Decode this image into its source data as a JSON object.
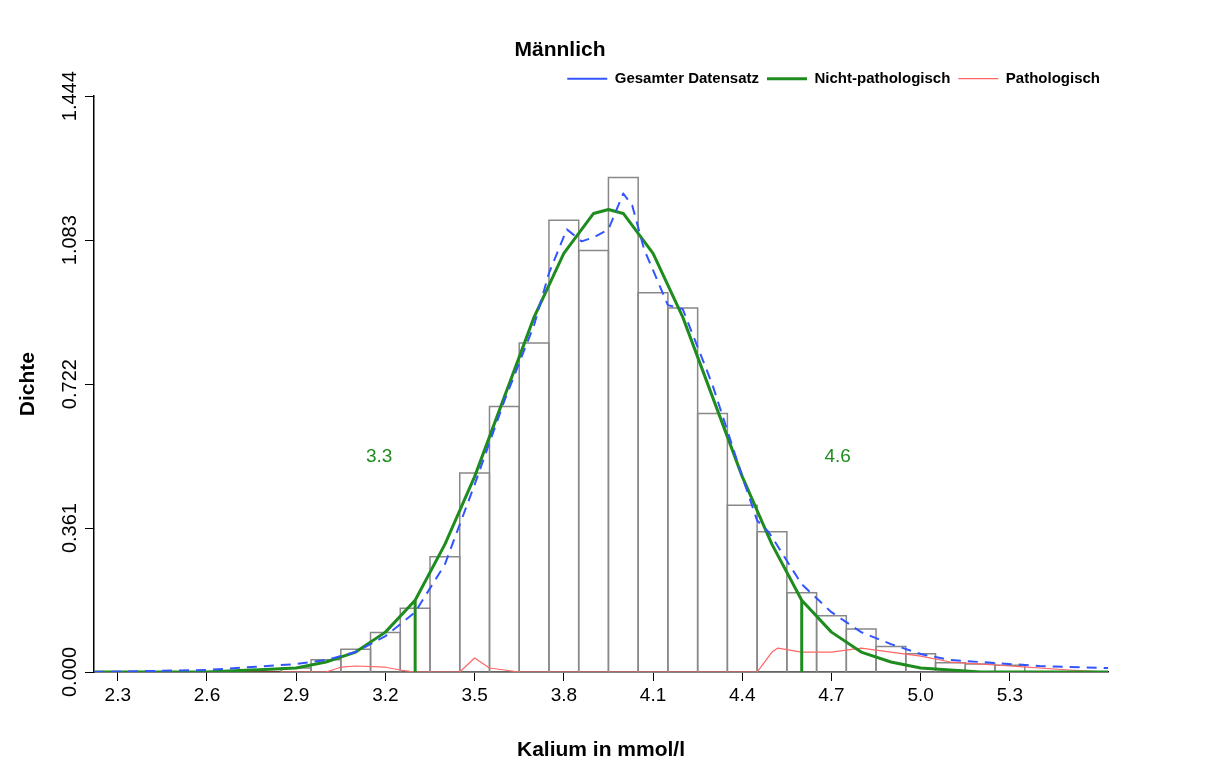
{
  "chart_data": {
    "type": "histogram",
    "title": "Männlich",
    "xlabel": "Kalium in mmol/l",
    "ylabel": "Dichte",
    "bins": [
      2.85,
      2.95,
      3.05,
      3.15,
      3.25,
      3.35,
      3.45,
      3.55,
      3.65,
      3.75,
      3.85,
      3.95,
      4.05,
      4.15,
      4.25,
      4.35,
      4.45,
      4.55,
      4.65,
      4.75,
      4.85,
      4.95,
      5.05,
      5.15,
      5.25,
      5.35
    ],
    "values": [
      0.01,
      0.031,
      0.057,
      0.099,
      0.16,
      0.289,
      0.499,
      0.666,
      0.825,
      1.133,
      1.057,
      1.24,
      0.951,
      0.913,
      0.648,
      0.418,
      0.352,
      0.199,
      0.141,
      0.108,
      0.064,
      0.046,
      0.023,
      0.02,
      0.017
    ],
    "color": "#888888",
    "series": [
      {
        "name": "Gesamter Datensatz",
        "type": "line",
        "color": "#3355ff",
        "line_style": "dashed",
        "x": [
          2.22,
          2.6,
          2.9,
          3.0,
          3.1,
          3.2,
          3.3,
          3.4,
          3.5,
          3.6,
          3.7,
          3.75,
          3.81,
          3.86,
          3.9,
          3.95,
          4.0,
          4.03,
          4.07,
          4.15,
          4.2,
          4.3,
          4.4,
          4.45,
          4.49,
          4.6,
          4.7,
          4.8,
          4.9,
          5.0,
          5.1,
          5.2,
          5.4,
          5.63
        ],
        "values": [
          0.0,
          0.005,
          0.02,
          0.03,
          0.05,
          0.09,
          0.15,
          0.27,
          0.47,
          0.68,
          0.87,
          1.0,
          1.11,
          1.08,
          1.09,
          1.11,
          1.2,
          1.17,
          1.06,
          0.92,
          0.91,
          0.72,
          0.49,
          0.38,
          0.35,
          0.22,
          0.15,
          0.1,
          0.07,
          0.045,
          0.03,
          0.025,
          0.015,
          0.01
        ]
      },
      {
        "name": "Nicht-pathologisch",
        "type": "line",
        "color": "#1e8c1e",
        "x": [
          2.22,
          2.6,
          2.9,
          3.0,
          3.1,
          3.2,
          3.3,
          3.4,
          3.5,
          3.6,
          3.7,
          3.8,
          3.9,
          3.95,
          4.0,
          4.1,
          4.2,
          4.3,
          4.4,
          4.5,
          4.6,
          4.7,
          4.8,
          4.9,
          5.0,
          5.2,
          5.63
        ],
        "values": [
          0.0,
          0.0,
          0.01,
          0.025,
          0.05,
          0.1,
          0.18,
          0.32,
          0.49,
          0.69,
          0.89,
          1.05,
          1.15,
          1.16,
          1.15,
          1.05,
          0.89,
          0.69,
          0.49,
          0.32,
          0.18,
          0.1,
          0.05,
          0.025,
          0.01,
          0.0,
          0.0
        ]
      },
      {
        "name": "Pathologisch",
        "type": "line",
        "color": "#ff6666",
        "x": [
          2.22,
          3.0,
          3.05,
          3.1,
          3.2,
          3.25,
          3.3,
          3.45,
          3.5,
          3.55,
          3.6,
          3.65,
          4.45,
          4.5,
          4.52,
          4.6,
          4.7,
          4.8,
          4.9,
          5.0,
          5.1,
          5.3,
          5.5,
          5.63
        ],
        "values": [
          0.0,
          0.0,
          0.012,
          0.015,
          0.012,
          0.005,
          0.0,
          0.0,
          0.035,
          0.01,
          0.005,
          0.0,
          0.0,
          0.05,
          0.06,
          0.05,
          0.05,
          0.06,
          0.05,
          0.04,
          0.025,
          0.015,
          0.005,
          0.0
        ]
      }
    ],
    "ref_lines": [
      {
        "axis": "x",
        "value": 3.3,
        "label": "3.3",
        "color": "#1e8c1e"
      },
      {
        "axis": "x",
        "value": 4.6,
        "label": "4.6",
        "color": "#1e8c1e"
      }
    ],
    "xlim": [
      2.22,
      5.63
    ],
    "xticks": [
      2.3,
      2.6,
      2.9,
      3.2,
      3.5,
      3.8,
      4.1,
      4.4,
      4.7,
      {
        "value": 5,
        "label": "5.0"
      },
      5.3
    ],
    "ylim": [
      0,
      1.444
    ],
    "yticks": [
      {
        "value": 0,
        "label": "0.000"
      },
      0.361,
      0.722,
      1.083,
      1.444
    ],
    "legend": "top right",
    "grid": false
  }
}
